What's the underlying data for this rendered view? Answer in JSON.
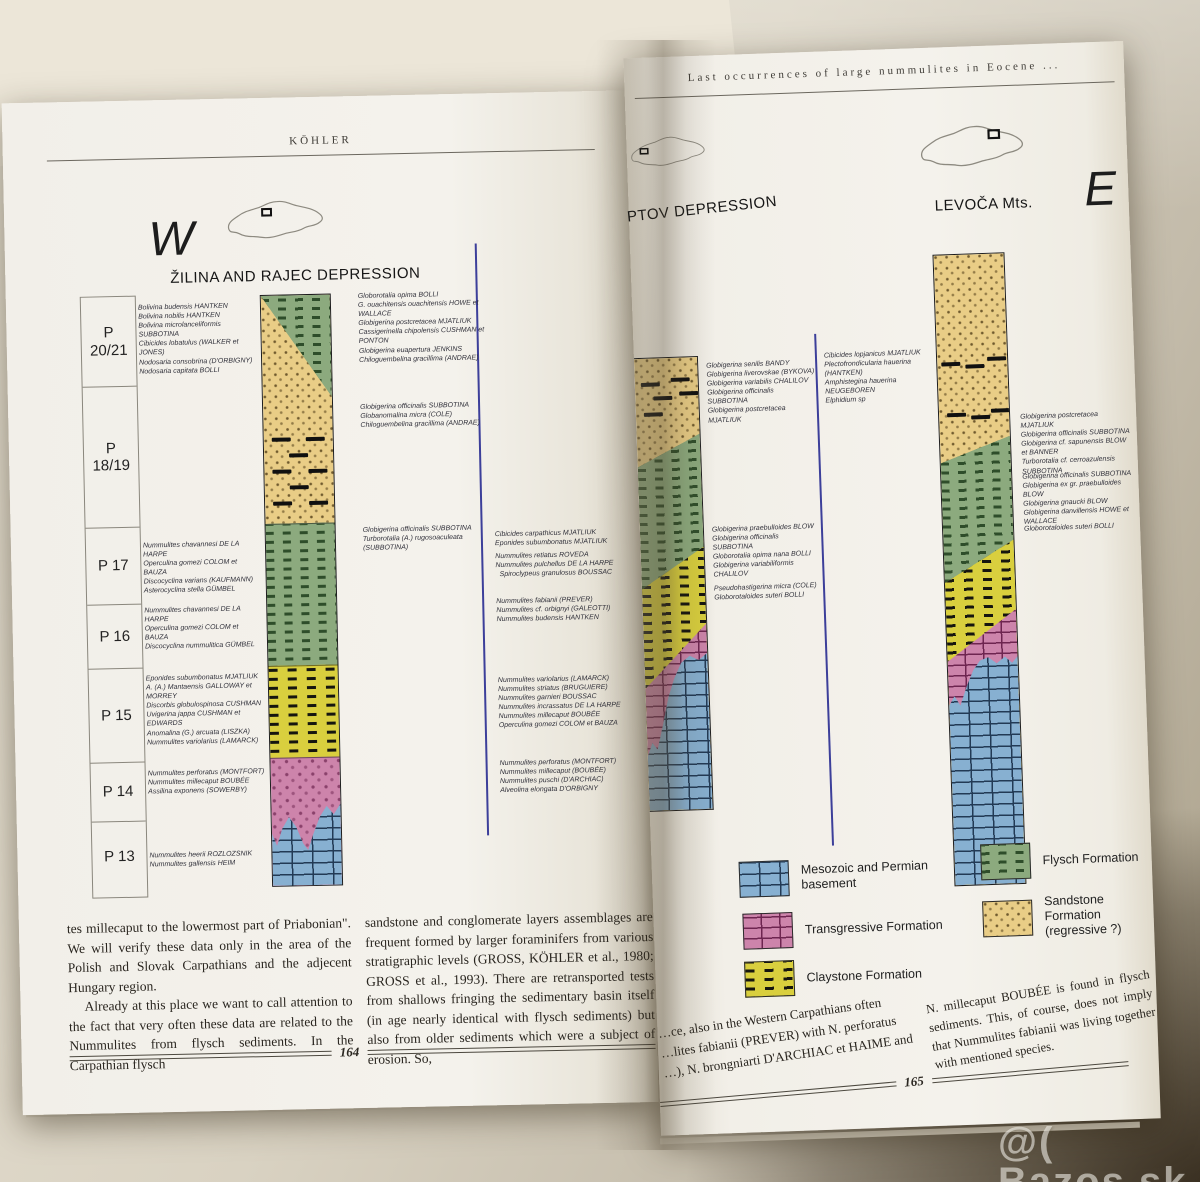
{
  "watermark": "@( Bazos.sk",
  "left_page": {
    "running_head": "KÖHLER",
    "page_number": "164",
    "direction_label": "W",
    "section_title": "ŽILINA AND RAJEC DEPRESSION",
    "zones": [
      "P 20/21",
      "P 18/19",
      "P 17",
      "P 16",
      "P 15",
      "P 14",
      "P 13"
    ],
    "fossil_groups": {
      "p2021_left": [
        "Bolivina budensis HANTKEN",
        "Bolivina nobilis HANTKEN",
        "Bolivina microlanceliformis SUBBOTINA",
        "Cibicides lobatulus (WALKER et JONES)",
        "Nodosaria consobrina (D'ORBIGNY)",
        "Nodosaria capitata BOLLI"
      ],
      "p2021_right": [
        "Globorotalia opima BOLLI",
        "G. ouachitensis ouachitensis HOWE et WALLACE",
        "Globigerina postcretacea MJATLIUK",
        "Cassigerinella chipolensis CUSHMAN et PONTON",
        "Globigerina euapertura JENKINS",
        "Chiloguembelina gracillima (ANDRAE)"
      ],
      "p1819_right": [
        "Globigerina officinalis SUBBOTINA",
        "Globanomalina micra (COLE)",
        "Chiloguembelina gracillima (ANDRAE)"
      ],
      "p17_left": [
        "Nummulites chavannesi DE LA HARPE",
        "Operculina gomezi COLOM et BAUZA",
        "Discocyclina varians (KAUFMANN)",
        "Asterocyclina stella GÜMBEL"
      ],
      "p17_right": [
        "Globigerina officinalis SUBBOTINA",
        "Turborotalia (A.) rugosoaculeata (SUBBOTINA)"
      ],
      "p16_left": [
        "Nummulites chavannesi DE LA HARPE",
        "Operculina gomezi COLOM et BAUZA",
        "Discocyclina nummulitica GÜMBEL"
      ],
      "p15_left": [
        "Eponides subumbonatus MJATLIUK",
        "A. (A.) Mantaensis GALLOWAY et MORREY",
        "Discorbis globulospinosa CUSHMAN",
        "Uvigerina jappa CUSHMAN et EDWARDS",
        "Anomalina (G.) arcuata (LISZKA)",
        "Nummulites variolarius (LAMARCK)"
      ],
      "p14_left": [
        "Nummulites perforatus (MONTFORT)",
        "Nummulites millecaput BOUBÉE",
        "Assilina exponens (SOWERBY)"
      ],
      "p13_left": [
        "Nummulites heerii ROZLOZSNIK",
        "Nummulites gallensis HEIM"
      ],
      "col2_a": [
        "Cibicides carpathicus MJATLIUK",
        "Eponides subumbonatus MJATLIUK"
      ],
      "col2_b": [
        "Nummulites retiatus ROVEDA",
        "Nummulites pulchellus DE LA HARPE"
      ],
      "col2_c": [
        "Spiroclypeus granulosus BOUSSAC"
      ],
      "col2_d": [
        "Nummulites fabianii (PREVER)",
        "Nummulites cf. orbignyi (GALEOTTI)",
        "Nummulites budensis HANTKEN"
      ],
      "col2_e": [
        "Nummulites variolarius (LAMARCK)",
        "Nummulites striatus (BRUGUIERE)",
        "Nummulites garnieri BOUSSAC",
        "Nummulites incrassatus DE LA HARPE",
        "Nummulites millecaput BOUBÉE",
        "Operculina gomezi COLOM et BAUZA"
      ],
      "col2_f": [
        "Nummulites perforatus (MONTFORT)",
        "Nummulites millecaput (BOUBÉE)",
        "Nummulites puschi (D'ARCHIAC)",
        "Alveolina elongata D'ORBIGNY"
      ]
    },
    "body_col1_p1": "tes millecaput to the lowermost part of Priabonian\". We will verify these data only in the area of the Polish and Slovak Carpathians and the adjecent Hungary region.",
    "body_col1_p2": "Already at this place we want to call attention to the fact that very often these data are related to the Nummulites from flysch sediments. In the Carpathian flysch",
    "body_col2": "sandstone and conglomerate layers assemblages are frequent formed by larger foraminifers from various stratigraphic levels (GROSS, KÖHLER et al., 1980; GROSS et al., 1993). There are retransported tests from shallows fringing the sedimentary basin itself (in age nearly identical with flysch sediments) but also from older sediments which were a subject of erosion. So,"
  },
  "right_page": {
    "running_head": "Last occurrences of large nummulites in Eocene ...",
    "page_number": "165",
    "direction_label": "E",
    "liptov_title": "PTOV DEPRESSION",
    "levoca_title": "LEVOČA Mts.",
    "fossil_groups": {
      "liptov_a": [
        "Globigerina senilis BANDY",
        "Globigerina liverovskae (BYKOVA)",
        "Globigerina variabilis CHALILOV",
        "Globigerina officinalis SUBBOTINA",
        "Globigerina postcretacea MJATLIUK"
      ],
      "liptov_b": [
        "Globigerina praebulloides BLOW",
        "Globigerina officinalis SUBBOTINA",
        "Globorotalia opima nana BOLLI",
        "Globigerina variabiliformis CHALILOV"
      ],
      "liptov_c": [
        "Pseudohastigerina micra (COLE)",
        "Globorotaloides suteri BOLLI"
      ],
      "levoca_left": [
        "Cibicides lopjanicus MJATLIUK",
        "Plectofrondicularia hauerina (HANTKEN)",
        "Amphistegina hauerina NEUGEBOREN",
        "Elphidium sp"
      ],
      "levoca_a": [
        "Globigerina postcretacea MJATLIUK",
        "Globigerina officinalis SUBBOTINA",
        "Globigerina cf. sapunensis BLOW et BANNER",
        "Turborotalia cf. cerroazulensis SUBBOTINA"
      ],
      "levoca_b": [
        "Globigerina officinalis SUBBOTINA",
        "Globigerina ex gr. praebulloides BLOW",
        "Globigerina gnaucki BLOW",
        "Globigerina danvillensis HOWE et WALLACE"
      ],
      "levoca_c": [
        "Globorotaloides suteri BOLLI"
      ]
    },
    "legend": [
      {
        "label": "Mesozoic and Permian basement",
        "pattern": "brick-blue"
      },
      {
        "label": "Transgressive Formation",
        "pattern": "brick-pink"
      },
      {
        "label": "Claystone Formation",
        "pattern": "clay"
      },
      {
        "label": "Flysch Formation",
        "pattern": "flysch"
      },
      {
        "label": "Sandstone Formation (regressive ?)",
        "pattern": "sand"
      }
    ],
    "body_col1": [
      "…ce, also in the Western Carpathians often",
      "…lites fabianii (PREVER) with N. perforatus",
      "…), N. brongniarti D'ARCHIAC et HAIME and"
    ],
    "body_col2": "N. millecaput BOUBÉE is found in flysch sediments. This, of course, does not imply that Nummulites fabianii was living together with mentioned species."
  },
  "colors": {
    "sandstone": "#e9cd86",
    "flysch": "#8caa7e",
    "claystone": "#d9cf3e",
    "transgressive": "#cd84ab",
    "basement": "#87b0d1",
    "divider_line": "#3c3f9a"
  }
}
